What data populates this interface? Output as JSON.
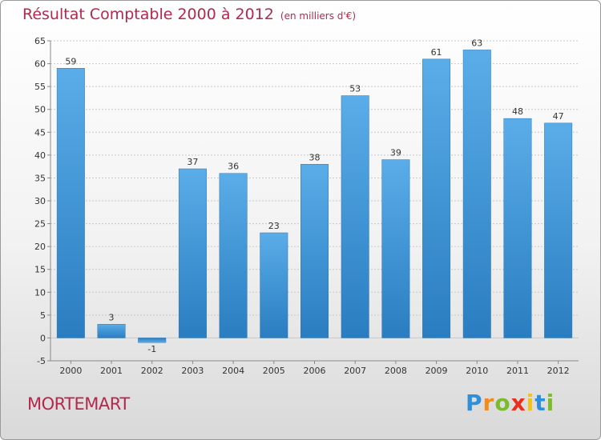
{
  "title": "Résultat Comptable 2000 à 2012",
  "subtitle": "(en milliers d'€)",
  "commune": "MORTEMART",
  "logo": {
    "letters": [
      "P",
      "r",
      "o",
      "x",
      "i",
      "t",
      "i"
    ],
    "colors": [
      "#2f8fd8",
      "#f28c1c",
      "#7cbb2e",
      "#e8301c",
      "#f2c21c",
      "#2f8fd8",
      "#7cbb2e"
    ]
  },
  "chart_data": {
    "type": "bar",
    "categories": [
      "2000",
      "2001",
      "2002",
      "2003",
      "2004",
      "2005",
      "2006",
      "2007",
      "2008",
      "2009",
      "2010",
      "2011",
      "2012"
    ],
    "values": [
      59,
      3,
      -1,
      37,
      36,
      23,
      38,
      53,
      39,
      61,
      63,
      48,
      47
    ],
    "value_labels": [
      "59",
      "3",
      "-1",
      "37",
      "36",
      "23",
      "38",
      "53",
      "39",
      "61",
      "63",
      "48",
      "47"
    ],
    "ylim": [
      -5,
      65
    ],
    "yticks": [
      "-5",
      "0",
      "5",
      "10",
      "15",
      "20",
      "25",
      "30",
      "35",
      "40",
      "45",
      "50",
      "55",
      "60",
      "65"
    ],
    "grid": true,
    "bar_color": "#4a9fe0"
  }
}
